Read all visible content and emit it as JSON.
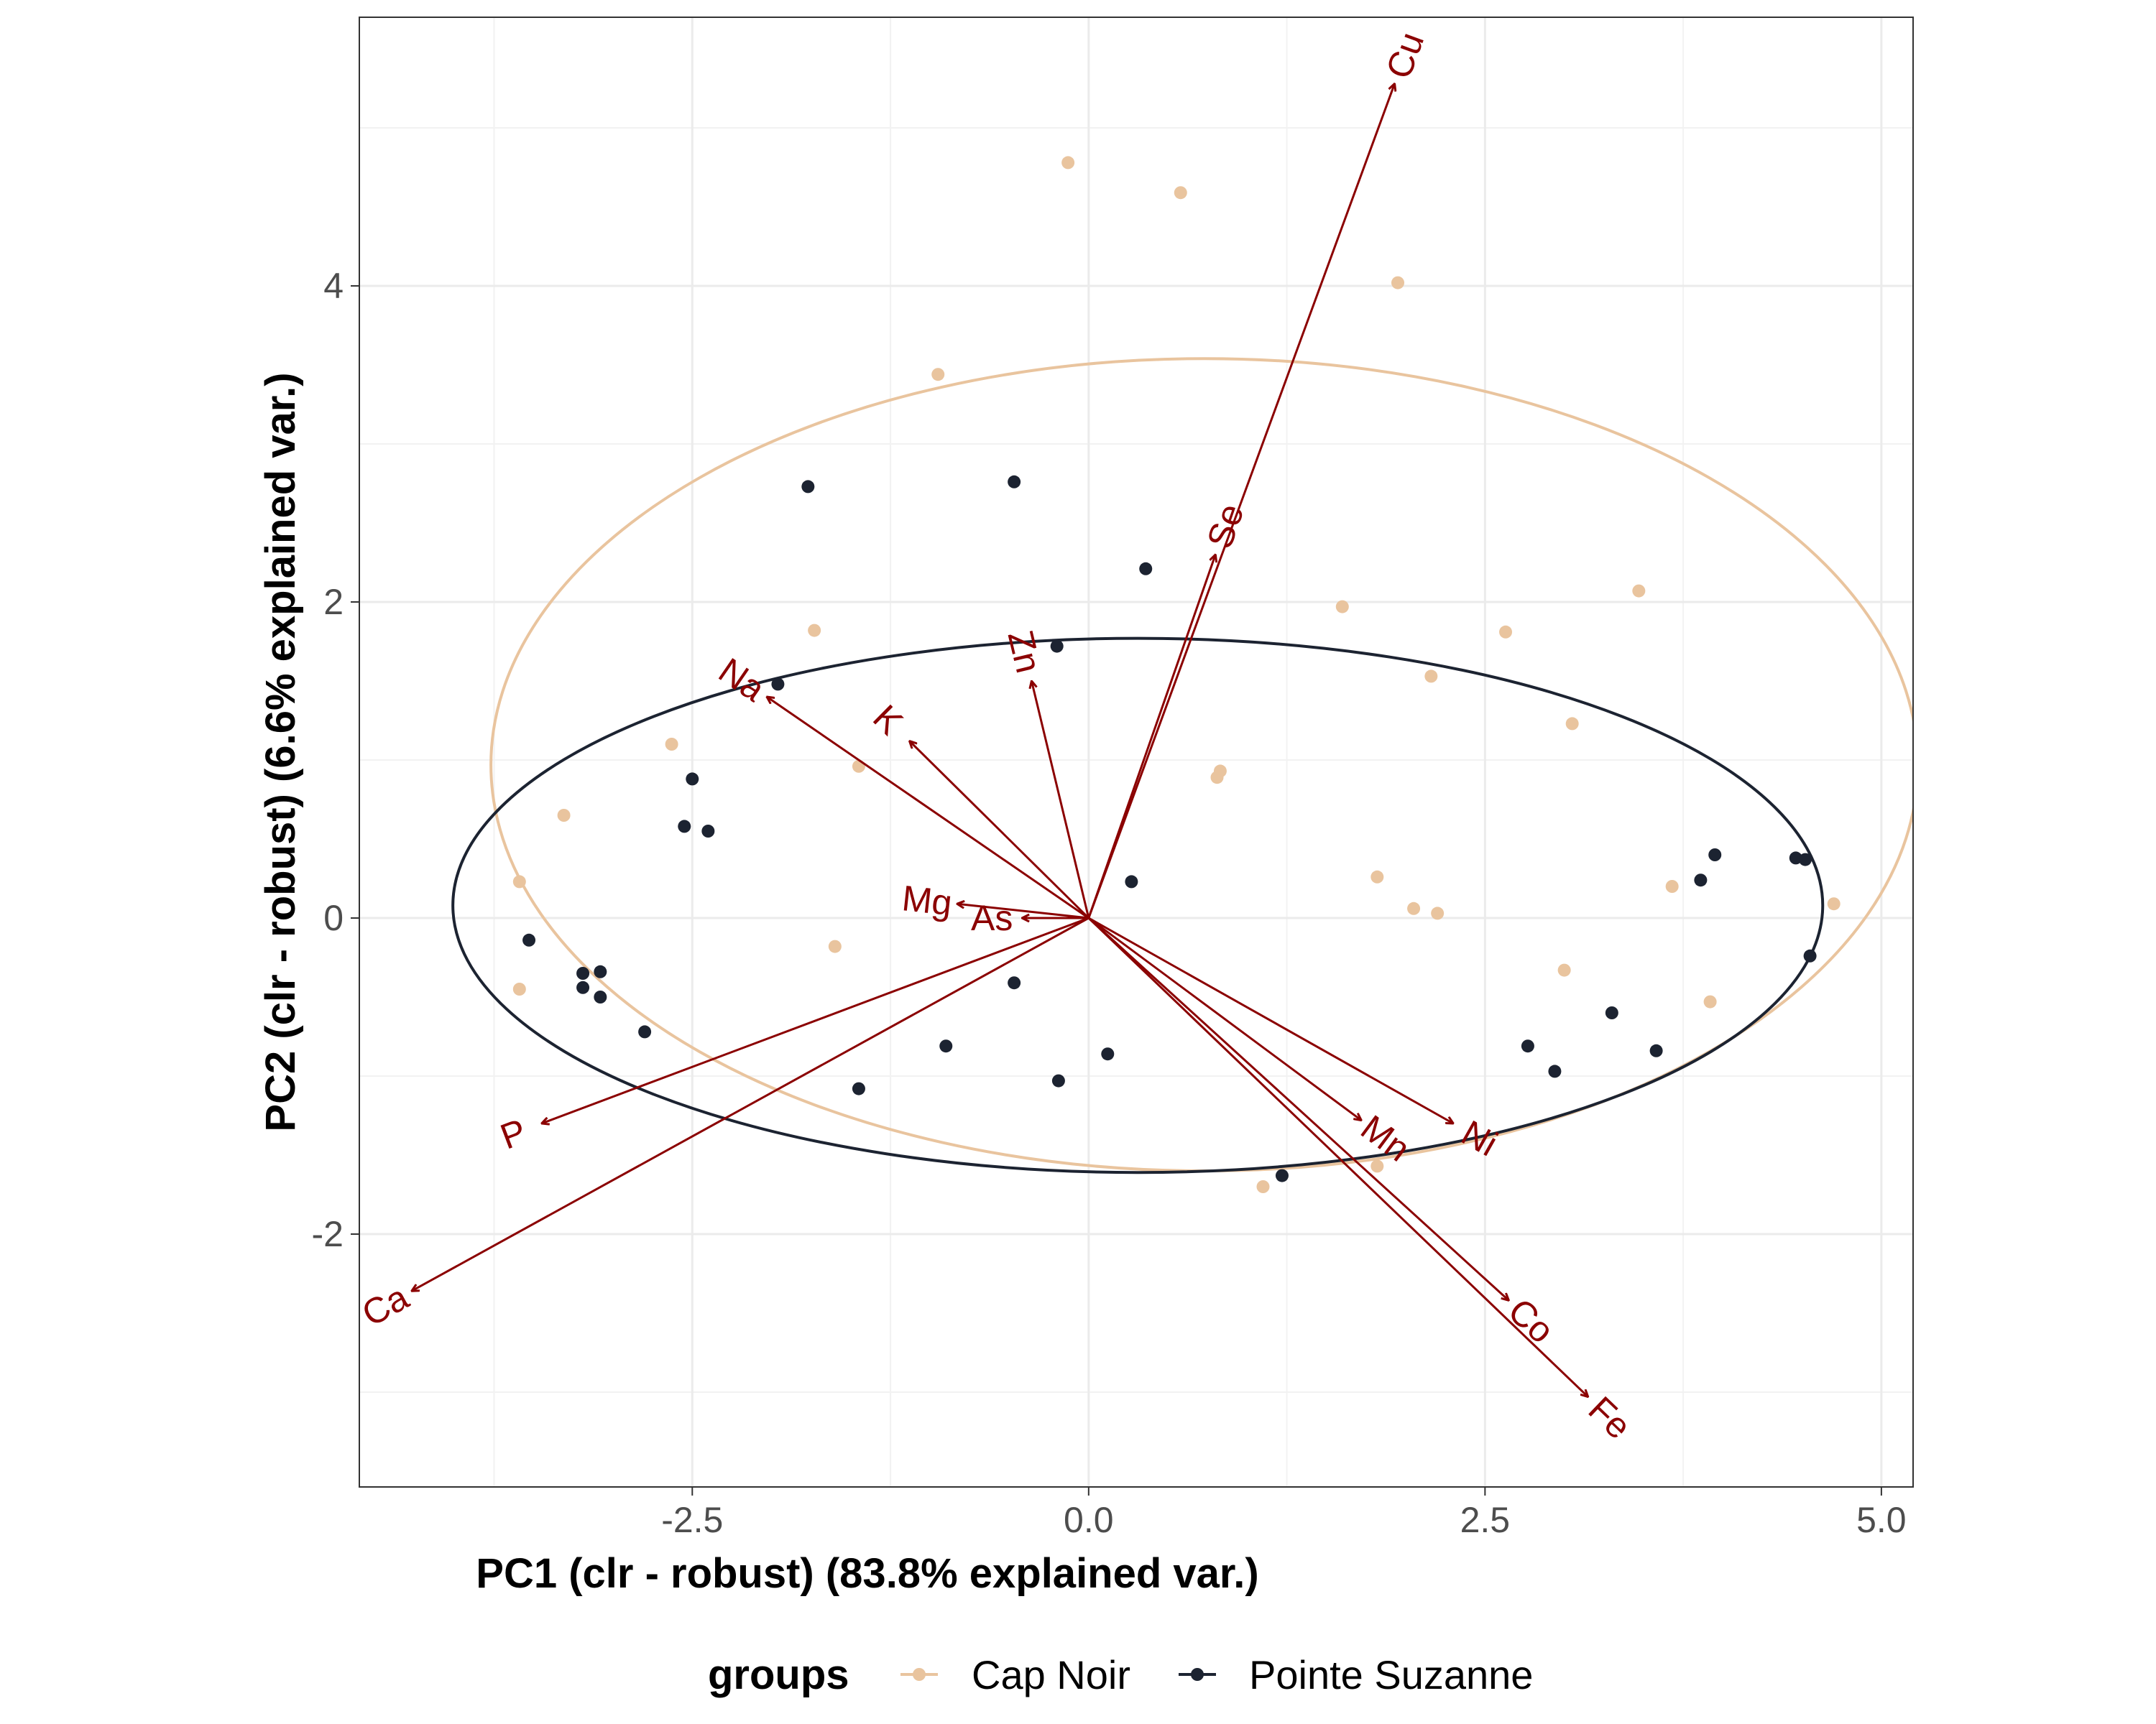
{
  "chart_data": {
    "type": "scatter",
    "subtype": "pca-biplot",
    "xlabel": "PC1 (clr - robust) (83.8% explained var.)",
    "ylabel": "PC2 (clr - robust) (6.6% explained var.)",
    "xlim": [
      -4.6,
      5.2
    ],
    "ylim": [
      -3.6,
      5.7
    ],
    "x_ticks": [
      {
        "value": -2.5,
        "label": "-2.5"
      },
      {
        "value": 0,
        "label": "0.0"
      },
      {
        "value": 2.5,
        "label": "2.5"
      },
      {
        "value": 5,
        "label": "5.0"
      }
    ],
    "y_ticks": [
      {
        "value": -2,
        "label": "-2"
      },
      {
        "value": 0,
        "label": "0"
      },
      {
        "value": 2,
        "label": "2"
      },
      {
        "value": 4,
        "label": "4"
      }
    ],
    "grid": true,
    "legend": {
      "title": "groups",
      "position": "bottom",
      "items": [
        {
          "label": "Cap Noir",
          "color": "#e9c49e"
        },
        {
          "label": "Pointe Suzanne",
          "color": "#1c2331"
        }
      ]
    },
    "arrow_color": "#8b0000",
    "series": [
      {
        "name": "Cap Noir",
        "color": "#e9c49e",
        "points": [
          [
            -0.13,
            4.78
          ],
          [
            0.58,
            4.59
          ],
          [
            1.95,
            4.02
          ],
          [
            -0.95,
            3.44
          ],
          [
            1.6,
            1.97
          ],
          [
            3.47,
            2.07
          ],
          [
            -1.73,
            1.82
          ],
          [
            2.63,
            1.81
          ],
          [
            2.16,
            1.53
          ],
          [
            3.05,
            1.23
          ],
          [
            -2.63,
            1.1
          ],
          [
            -1.45,
            0.96
          ],
          [
            0.83,
            0.93
          ],
          [
            0.81,
            0.89
          ],
          [
            -3.31,
            0.65
          ],
          [
            -3.59,
            0.23
          ],
          [
            1.82,
            0.26
          ],
          [
            3.68,
            0.2
          ],
          [
            2.05,
            0.06
          ],
          [
            2.2,
            0.03
          ],
          [
            4.7,
            0.09
          ],
          [
            -1.6,
            -0.18
          ],
          [
            -3.59,
            -0.45
          ],
          [
            3.0,
            -0.33
          ],
          [
            3.92,
            -0.53
          ],
          [
            1.82,
            -1.57
          ],
          [
            1.1,
            -1.7
          ]
        ]
      },
      {
        "name": "Pointe Suzanne",
        "color": "#1c2331",
        "points": [
          [
            -1.77,
            2.73
          ],
          [
            -0.47,
            2.76
          ],
          [
            0.36,
            2.21
          ],
          [
            -0.2,
            1.72
          ],
          [
            -1.96,
            1.48
          ],
          [
            -2.5,
            0.88
          ],
          [
            -2.55,
            0.58
          ],
          [
            -2.4,
            0.55
          ],
          [
            0.27,
            0.23
          ],
          [
            3.95,
            0.4
          ],
          [
            3.86,
            0.24
          ],
          [
            4.46,
            0.38
          ],
          [
            4.52,
            0.37
          ],
          [
            4.55,
            -0.24
          ],
          [
            -3.53,
            -0.14
          ],
          [
            -3.19,
            -0.35
          ],
          [
            -3.08,
            -0.34
          ],
          [
            -3.19,
            -0.44
          ],
          [
            -3.08,
            -0.5
          ],
          [
            -2.8,
            -0.72
          ],
          [
            -0.47,
            -0.41
          ],
          [
            -0.9,
            -0.81
          ],
          [
            0.12,
            -0.86
          ],
          [
            -0.19,
            -1.03
          ],
          [
            -1.45,
            -1.08
          ],
          [
            2.77,
            -0.81
          ],
          [
            2.94,
            -0.97
          ],
          [
            3.3,
            -0.6
          ],
          [
            3.58,
            -0.84
          ],
          [
            1.22,
            -1.63
          ]
        ]
      }
    ],
    "ellipses": [
      {
        "group": "Cap Noir",
        "center": [
          0.73,
          0.97
        ],
        "semi_axes": [
          4.5,
          2.57
        ],
        "color": "#e9c49e"
      },
      {
        "group": "Pointe Suzanne",
        "center": [
          0.31,
          0.08
        ],
        "semi_axes": [
          4.32,
          1.69
        ],
        "color": "#1c2331"
      }
    ],
    "loadings": [
      {
        "name": "Cu",
        "x": 1.93,
        "y": 5.28
      },
      {
        "name": "Se",
        "x": 0.8,
        "y": 2.3
      },
      {
        "name": "Zn",
        "x": -0.36,
        "y": 1.5
      },
      {
        "name": "Na",
        "x": -2.03,
        "y": 1.4
      },
      {
        "name": "K",
        "x": -1.13,
        "y": 1.12
      },
      {
        "name": "Mg",
        "x": -0.83,
        "y": 0.09
      },
      {
        "name": "As",
        "x": -0.42,
        "y": 0.0
      },
      {
        "name": "P",
        "x": -3.45,
        "y": -1.3
      },
      {
        "name": "Ca",
        "x": -4.27,
        "y": -2.36
      },
      {
        "name": "Mn",
        "x": 1.72,
        "y": -1.28
      },
      {
        "name": "Ni",
        "x": 2.3,
        "y": -1.3
      },
      {
        "name": "Co",
        "x": 2.65,
        "y": -2.42
      },
      {
        "name": "Fe",
        "x": 3.15,
        "y": -3.03
      }
    ]
  }
}
